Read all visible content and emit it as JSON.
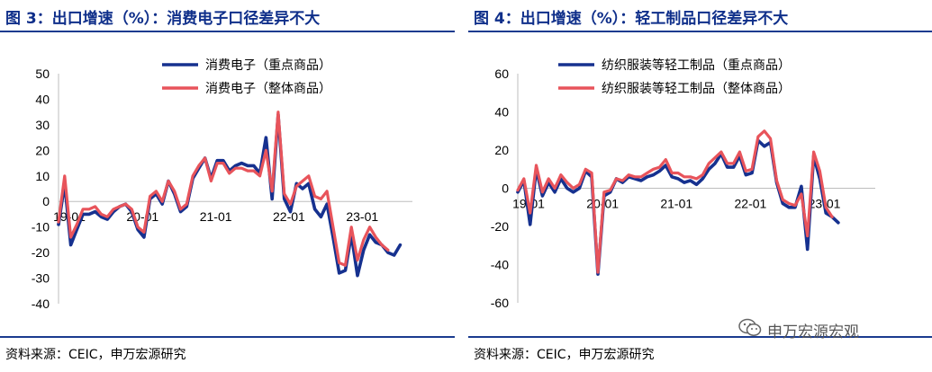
{
  "left": {
    "title": "图 3：出口增速（%）：消费电子口径差异不大",
    "source": "资料来源：CEIC，申万宏源研究"
  },
  "right": {
    "title": "图 4：出口增速（%）：轻工制品口径差异不大",
    "source": "资料来源：CEIC，申万宏源研究"
  },
  "watermark": {
    "text": "申万宏源宏观",
    "icon": "wechat-icon"
  },
  "colors": {
    "series_a": "#16318f",
    "series_b": "#e8545b",
    "rule": "#1a3b8f",
    "title": "#0f2f8a"
  },
  "chart_data": [
    {
      "type": "line",
      "title": "",
      "xlabel": "",
      "ylabel": "",
      "ylim": [
        -40,
        50
      ],
      "yticks": [
        50,
        40,
        30,
        20,
        10,
        0,
        -10,
        -20,
        -30,
        -40
      ],
      "x_tick_labels": [
        "19-01",
        "20-01",
        "21-01",
        "22-01",
        "23-01"
      ],
      "x_tick_index": [
        0,
        12,
        24,
        36,
        48
      ],
      "n_points": 59,
      "legend": "top-center",
      "series": [
        {
          "name": "消费电子（重点商品）",
          "values": [
            -9,
            7,
            -17,
            -11,
            -5,
            -5,
            -4,
            -6,
            -7,
            -4,
            -2,
            -1,
            -4,
            -11,
            -14,
            1,
            3,
            -1,
            8,
            3,
            -4,
            -2,
            9,
            13,
            17,
            9,
            16,
            16,
            12,
            14,
            15,
            14,
            14,
            11,
            25,
            1,
            34,
            1,
            -4,
            7,
            5,
            7,
            -3,
            -6,
            -1,
            -14,
            -28,
            -27,
            -13,
            -29,
            -19,
            -13,
            -16,
            -17,
            -20,
            -21,
            -17,
            null,
            null
          ]
        },
        {
          "name": "消费电子（整体商品）",
          "values": [
            -8,
            10,
            -14,
            -9,
            -3,
            -3,
            -2,
            -5,
            -6,
            -3,
            -2,
            -1,
            -3,
            -10,
            -12,
            2,
            4,
            0,
            8,
            4,
            -3,
            -1,
            10,
            14,
            17,
            8,
            15,
            15,
            11,
            13,
            13,
            12,
            12,
            10,
            20,
            4,
            35,
            3,
            -1,
            6,
            8,
            10,
            2,
            1,
            4,
            -10,
            -24,
            -25,
            -10,
            -23,
            -15,
            -10,
            -14,
            -17,
            -19,
            null,
            null,
            null,
            null
          ]
        }
      ]
    },
    {
      "type": "line",
      "title": "",
      "xlabel": "",
      "ylabel": "",
      "ylim": [
        -60,
        60
      ],
      "yticks": [
        60,
        40,
        20,
        0,
        -20,
        -40,
        -60
      ],
      "x_tick_labels": [
        "19-01",
        "20-01",
        "21-01",
        "22-01",
        "23-01"
      ],
      "x_tick_index": [
        0,
        12,
        24,
        36,
        48
      ],
      "n_points": 59,
      "legend": "top-center",
      "series": [
        {
          "name": "纺织服装等轻工制品（重点商品）",
          "values": [
            -2,
            4,
            -19,
            10,
            -4,
            3,
            -2,
            5,
            0,
            -2,
            0,
            9,
            6,
            -45,
            -4,
            -2,
            5,
            3,
            6,
            5,
            4,
            6,
            7,
            9,
            12,
            6,
            5,
            3,
            4,
            2,
            5,
            10,
            13,
            18,
            11,
            11,
            17,
            7,
            8,
            25,
            22,
            24,
            3,
            -8,
            -10,
            -10,
            1,
            -32,
            17,
            5,
            -13,
            -15,
            -18,
            null,
            null,
            null,
            null,
            null,
            null
          ]
        },
        {
          "name": "纺织服装等轻工制品（整体商品）",
          "values": [
            -1,
            5,
            -13,
            12,
            -2,
            5,
            0,
            7,
            3,
            0,
            2,
            10,
            8,
            -44,
            -2,
            -1,
            5,
            4,
            7,
            6,
            6,
            8,
            10,
            11,
            15,
            8,
            8,
            6,
            6,
            5,
            7,
            13,
            16,
            19,
            13,
            13,
            19,
            9,
            10,
            27,
            30,
            26,
            4,
            -6,
            -8,
            -9,
            -3,
            -25,
            19,
            9,
            -10,
            -15,
            null,
            null,
            null,
            null,
            null,
            null,
            null
          ]
        }
      ]
    }
  ]
}
